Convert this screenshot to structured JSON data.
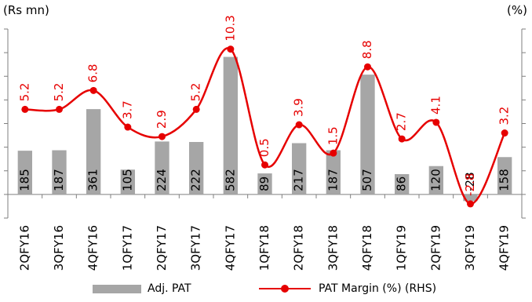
{
  "chart_data": {
    "type": "bar",
    "left_axis_label": "(Rs mn)",
    "right_axis_label": "(%)",
    "categories": [
      "2QFY16",
      "3QFY16",
      "4QFY16",
      "1QFY17",
      "2QFY17",
      "3QFY17",
      "4QFY17",
      "1QFY18",
      "2QFY18",
      "3QFY18",
      "4QFY18",
      "1QFY19",
      "2QFY19",
      "3QFY19",
      "4QFY19"
    ],
    "series": [
      {
        "name": "Adj. PAT",
        "type": "bar",
        "axis": "left",
        "color": "#a6a6a6",
        "values": [
          185,
          187,
          361,
          105,
          224,
          222,
          582,
          89,
          217,
          187,
          507,
          86,
          120,
          -28,
          158
        ],
        "labels": [
          "185",
          "187",
          "361",
          "105",
          "224",
          "222",
          "582",
          "89",
          "217",
          "187",
          "507",
          "86",
          "120",
          "-28",
          "158"
        ]
      },
      {
        "name": "PAT Margin (%) (RHS)",
        "type": "line",
        "axis": "right",
        "color": "#e60000",
        "values": [
          5.2,
          5.2,
          6.8,
          3.7,
          2.9,
          5.2,
          10.3,
          0.5,
          3.9,
          1.5,
          8.8,
          2.7,
          4.1,
          -2.8,
          3.2
        ],
        "labels": [
          "5.2",
          "5.2",
          "6.8",
          "3.7",
          "2.9",
          "5.2",
          "10.3",
          "0.5",
          "3.9",
          "1.5",
          "8.8",
          "2.7",
          "4.1",
          "-2.8",
          "3.2"
        ]
      }
    ],
    "y_left_range": [
      -100,
      700
    ],
    "y_right_range": [
      -4,
      12
    ],
    "grid": false,
    "legend_position": "bottom"
  }
}
